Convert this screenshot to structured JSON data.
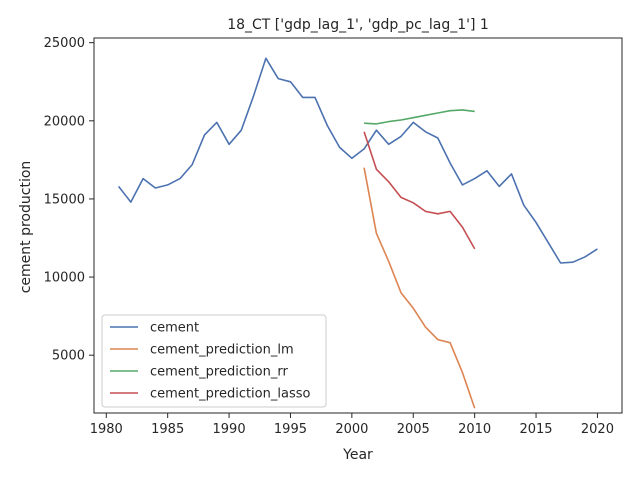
{
  "chart_data": {
    "type": "line",
    "title": "18_CT ['gdp_lag_1', 'gdp_pc_lag_1'] 1",
    "xlabel": "Year",
    "ylabel": "cement production",
    "xlim": [
      1979,
      2022
    ],
    "ylim": [
      1300,
      25300
    ],
    "xticks": [
      1980,
      1985,
      1990,
      1995,
      2000,
      2005,
      2010,
      2015,
      2020
    ],
    "yticks": [
      5000,
      10000,
      15000,
      20000,
      25000
    ],
    "grid": false,
    "legend_position": "lower-left",
    "series": [
      {
        "name": "cement",
        "color": "#4c72b0",
        "x": [
          1981,
          1982,
          1983,
          1984,
          1985,
          1986,
          1987,
          1988,
          1989,
          1990,
          1991,
          1992,
          1993,
          1994,
          1995,
          1996,
          1997,
          1998,
          1999,
          2000,
          2001,
          2002,
          2003,
          2004,
          2005,
          2006,
          2007,
          2008,
          2009,
          2010,
          2011,
          2012,
          2013,
          2014,
          2015,
          2016,
          2017,
          2018,
          2019,
          2020
        ],
        "y": [
          15800,
          14800,
          16300,
          15700,
          15900,
          16300,
          17200,
          19100,
          19900,
          18500,
          19400,
          21600,
          24000,
          22700,
          22500,
          21500,
          21500,
          19700,
          18300,
          17600,
          18200,
          19400,
          18500,
          19000,
          19900,
          19300,
          18900,
          17300,
          15900,
          16300,
          16800,
          15800,
          16600,
          14600,
          13500,
          12200,
          10900,
          10950,
          11300,
          11800
        ]
      },
      {
        "name": "cement_prediction_lm",
        "color": "#dd8452",
        "x": [
          2001,
          2002,
          2003,
          2004,
          2005,
          2006,
          2007,
          2008,
          2009,
          2010
        ],
        "y": [
          17000,
          12800,
          11000,
          9000,
          8000,
          6800,
          6000,
          5800,
          3900,
          1600
        ]
      },
      {
        "name": "cement_prediction_rr",
        "color": "#55a868",
        "x": [
          2001,
          2002,
          2003,
          2004,
          2005,
          2006,
          2007,
          2008,
          2009,
          2010
        ],
        "y": [
          19850,
          19800,
          19950,
          20050,
          20200,
          20350,
          20500,
          20650,
          20700,
          20600
        ]
      },
      {
        "name": "cement_prediction_lasso",
        "color": "#c44e52",
        "x": [
          2001,
          2002,
          2003,
          2004,
          2005,
          2006,
          2007,
          2008,
          2009,
          2010
        ],
        "y": [
          19300,
          16900,
          16100,
          15100,
          14750,
          14200,
          14050,
          14200,
          13200,
          11800
        ]
      }
    ]
  }
}
